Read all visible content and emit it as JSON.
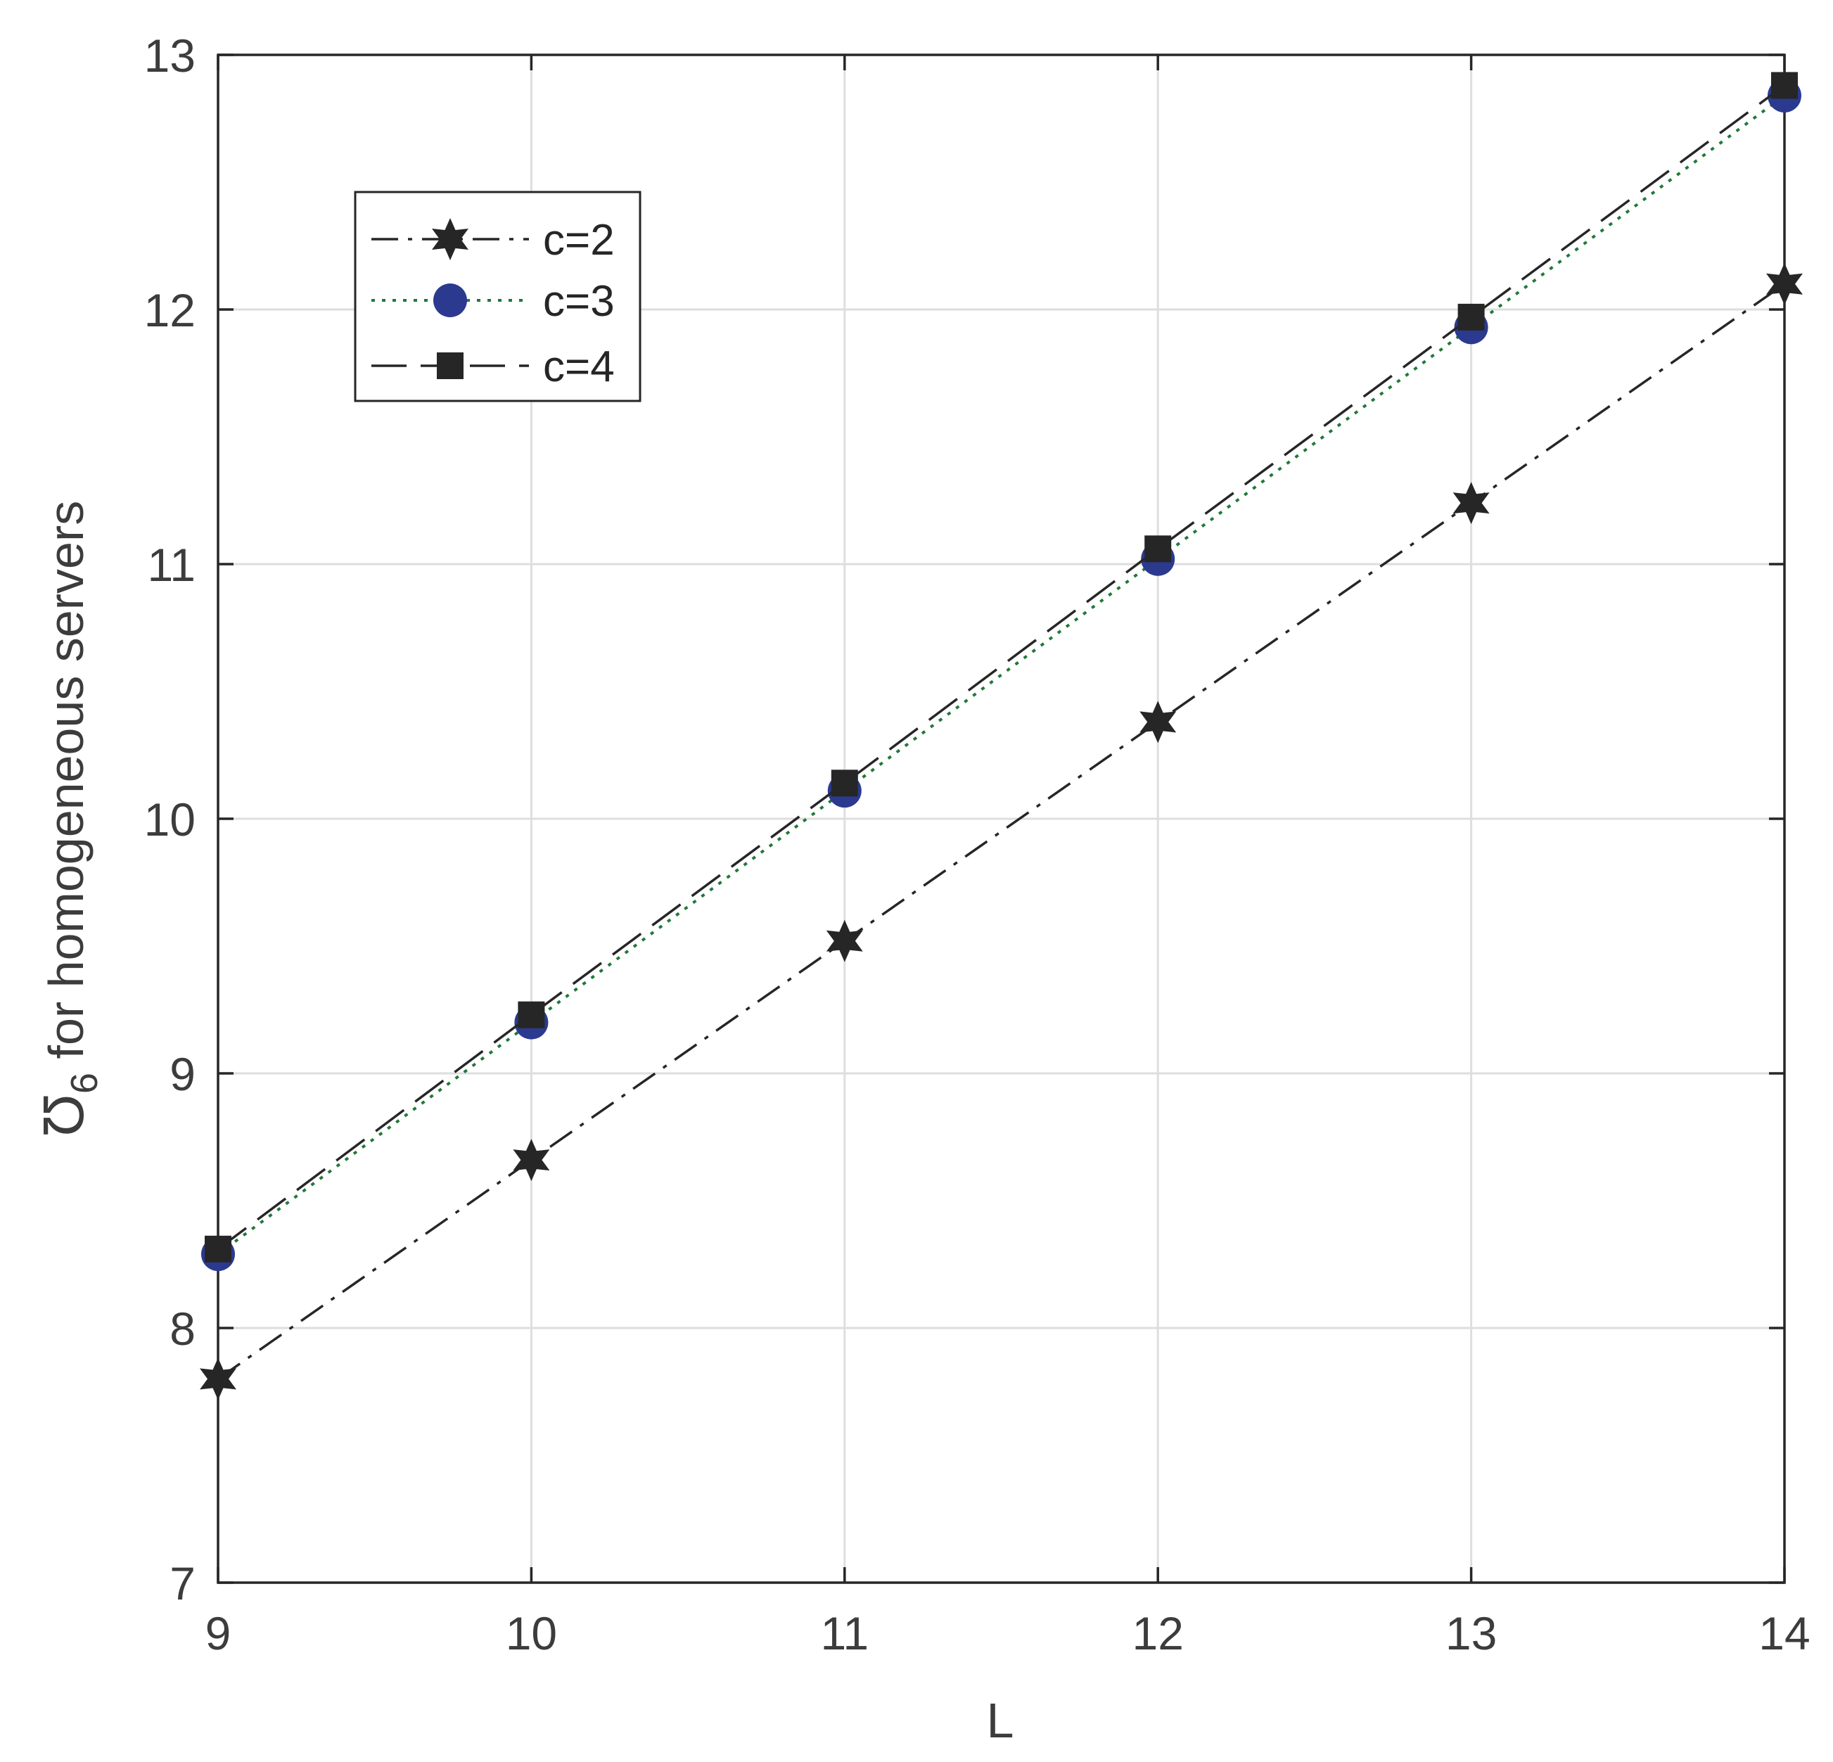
{
  "chart_data": {
    "type": "line",
    "xlabel": "L",
    "ylabel": {
      "symbol": "Ʊ",
      "subscript": "6",
      "text": " for homogeneous servers"
    },
    "x": [
      9,
      10,
      11,
      12,
      13,
      14
    ],
    "xlim": [
      9,
      14
    ],
    "ylim": [
      7,
      13
    ],
    "xticks": [
      "9",
      "10",
      "11",
      "12",
      "13",
      "14"
    ],
    "yticks": [
      "7",
      "8",
      "9",
      "10",
      "11",
      "12",
      "13"
    ],
    "grid": true,
    "legend_position": "top-left",
    "series": [
      {
        "name": "c=2",
        "values": [
          7.8,
          8.66,
          9.52,
          10.38,
          11.24,
          12.1
        ],
        "line_style": "dash-dot",
        "marker": "hexagram",
        "color": "#262626",
        "marker_color": "#262626"
      },
      {
        "name": "c=3",
        "values": [
          8.29,
          9.2,
          10.11,
          11.02,
          11.93,
          12.84
        ],
        "line_style": "dotted",
        "marker": "circle",
        "color": "#1f7a3a",
        "marker_color": "#2b3a8f"
      },
      {
        "name": "c=4",
        "values": [
          8.31,
          9.23,
          10.14,
          11.06,
          11.97,
          12.88
        ],
        "line_style": "dashed",
        "marker": "square",
        "color": "#262626",
        "marker_color": "#262626"
      }
    ]
  }
}
